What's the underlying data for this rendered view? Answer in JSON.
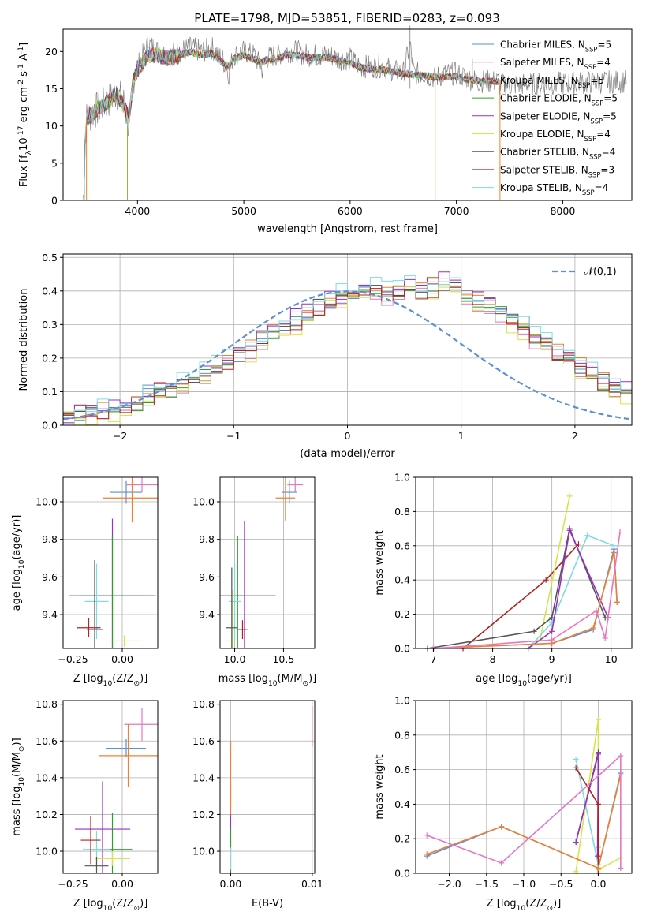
{
  "chart_data": [
    {
      "id": "spectrum",
      "type": "line",
      "title": "PLATE=1798, MJD=53851, FIBERID=0283, z=0.093",
      "xlabel": "wavelength [Angstrom, rest frame]",
      "ylabel": "Flux [f$_\\lambda$10$^{-17}$ erg cm$^{-2}$ s$^{-1}$ A$^{-1}$]",
      "xlim": [
        3300,
        8650
      ],
      "ylim": [
        0,
        23
      ],
      "xticks": [
        4000,
        5000,
        6000,
        7000,
        8000
      ],
      "yticks": [
        0,
        5,
        10,
        15,
        20
      ],
      "legend_position": "upper right",
      "data_x": [
        3480,
        3520,
        3600,
        3700,
        3800,
        3880,
        3920,
        3960,
        4000,
        4100,
        4200,
        4300,
        4400,
        4500,
        4600,
        4700,
        4800,
        4860,
        4900,
        5000,
        5100,
        5175,
        5200,
        5300,
        5400,
        5500,
        5600,
        5700,
        5800,
        5900,
        6000,
        6100,
        6200,
        6300,
        6400,
        6500,
        6563,
        6600,
        6700,
        6800,
        6900,
        7000,
        7100,
        7200,
        7300,
        7400
      ],
      "data_y": [
        0,
        11,
        12,
        13,
        14.5,
        13,
        9,
        16.5,
        18,
        21,
        20,
        19.5,
        20,
        20.5,
        20,
        20.5,
        19,
        17,
        19.5,
        20,
        19.5,
        17.5,
        19,
        19.5,
        20,
        20,
        19.5,
        19.5,
        19.5,
        19,
        19,
        18,
        18,
        18,
        17.5,
        17,
        21,
        17,
        17,
        16.5,
        17,
        17,
        16.5,
        16,
        16,
        16
      ],
      "series": [
        {
          "name": "Chabrier MILES, N$_{SSP}$=5",
          "color": "#5b8fd6"
        },
        {
          "name": "Salpeter MILES, N$_{SSP}$=4",
          "color": "#e377c2"
        },
        {
          "name": "Kroupa MILES, N$_{SSP}$=5",
          "color": "#f08030"
        },
        {
          "name": "Chabrier ELODIE, N$_{SSP}$=5",
          "color": "#2ca02c"
        },
        {
          "name": "Salpeter ELODIE, N$_{SSP}$=5",
          "color": "#9b2fbf"
        },
        {
          "name": "Kroupa ELODIE, N$_{SSP}$=4",
          "color": "#d7e44a"
        },
        {
          "name": "Chabrier STELIB, N$_{SSP}$=4",
          "color": "#555555"
        },
        {
          "name": "Salpeter STELIB, N$_{SSP}$=3",
          "color": "#b22222"
        },
        {
          "name": "Kroupa STELIB, N$_{SSP}$=4",
          "color": "#7fdbe0"
        }
      ],
      "model_fit_values": [
        0,
        11,
        12,
        13,
        14.3,
        12.5,
        11,
        16,
        17.5,
        19.5,
        19.5,
        19,
        19.5,
        20,
        19.5,
        19.8,
        18.5,
        18,
        19,
        19.5,
        19,
        18.5,
        18.8,
        19,
        19.5,
        19.5,
        19.2,
        19.2,
        19.2,
        18.8,
        18.5,
        17.8,
        17.6,
        17.6,
        17.3,
        17,
        17,
        16.8,
        16.8,
        16.5,
        16.6,
        16.6,
        16.3,
        16,
        16,
        16
      ]
    },
    {
      "id": "residuals",
      "type": "line",
      "xlabel": "(data-model)/error",
      "ylabel": "Normed distribution",
      "xlim": [
        -2.5,
        2.5
      ],
      "ylim": [
        0,
        0.51
      ],
      "xticks": [
        -2,
        -1,
        0,
        1,
        2
      ],
      "yticks": [
        0.0,
        0.1,
        0.2,
        0.3,
        0.4,
        0.5
      ],
      "grid": true,
      "legend_position": "upper right",
      "reference": {
        "name": "$\\mathcal{N}(0,1)$",
        "color": "#5b8fd6"
      },
      "bin_width": 0.1,
      "bin_start": -2.5,
      "base_histogram": [
        0.02,
        0.03,
        0.035,
        0.045,
        0.05,
        0.06,
        0.07,
        0.09,
        0.1,
        0.11,
        0.12,
        0.14,
        0.15,
        0.17,
        0.19,
        0.21,
        0.23,
        0.25,
        0.28,
        0.3,
        0.31,
        0.33,
        0.35,
        0.37,
        0.38,
        0.39,
        0.39,
        0.4,
        0.39,
        0.4,
        0.41,
        0.4,
        0.41,
        0.42,
        0.4,
        0.38,
        0.37,
        0.36,
        0.34,
        0.31,
        0.29,
        0.26,
        0.24,
        0.21,
        0.19,
        0.17,
        0.15,
        0.13,
        0.11,
        0.1
      ],
      "series_colors": [
        "#5b8fd6",
        "#e377c2",
        "#f08030",
        "#2ca02c",
        "#9b2fbf",
        "#d7e44a",
        "#555555",
        "#b22222",
        "#7fdbe0"
      ],
      "series_offsets": [
        0.0,
        -0.012,
        0.01,
        -0.005,
        0.015,
        -0.02,
        0.006,
        -0.008,
        0.02
      ]
    },
    {
      "id": "age_vs_Z",
      "type": "scatter",
      "xlabel": "Z [log$_{10}$($Z/Z_\\odot$)]",
      "ylabel": "age  [log$_{10}$($age/yr$)]",
      "xlim": [
        -0.3,
        0.18
      ],
      "ylim": [
        9.22,
        10.13
      ],
      "xticks": [
        -0.25,
        0.0
      ],
      "xticklabels": [
        "−0.25",
        "0.00"
      ],
      "yticks": [
        9.4,
        9.6,
        9.8,
        10.0
      ],
      "grid": true,
      "points": [
        {
          "x": -0.05,
          "y": 9.5,
          "xerr": 0.22,
          "yerr": 0.41,
          "color": "#9b2fbf"
        },
        {
          "x": -0.05,
          "y": 9.5,
          "xerr": 0.17,
          "yerr": 0.32,
          "color": "#2ca02c"
        },
        {
          "x": 0.01,
          "y": 9.26,
          "xerr": 0.08,
          "yerr": 0.03,
          "color": "#d7e44a"
        },
        {
          "x": -0.13,
          "y": 9.47,
          "xerr": 0.06,
          "yerr": 0.2,
          "color": "#7fdbe0"
        },
        {
          "x": -0.14,
          "y": 9.32,
          "xerr": 0.04,
          "yerr": 0.37,
          "color": "#555555"
        },
        {
          "x": -0.17,
          "y": 9.33,
          "xerr": 0.06,
          "yerr": 0.05,
          "color": "#b22222"
        },
        {
          "x": 0.02,
          "y": 10.05,
          "xerr": 0.08,
          "yerr": 0.06,
          "color": "#5b8fd6"
        },
        {
          "x": 0.1,
          "y": 10.09,
          "xerr": 0.08,
          "yerr": 0.04,
          "color": "#e377c2"
        },
        {
          "x": 0.05,
          "y": 10.02,
          "xerr": 0.15,
          "yerr": 0.13,
          "color": "#f08030"
        }
      ]
    },
    {
      "id": "age_vs_mass",
      "type": "scatter",
      "xlabel": "mass [log$_{10}$($M/M_\\odot$)]",
      "ylabel": "",
      "xlim": [
        9.85,
        10.82
      ],
      "ylim": [
        9.22,
        10.13
      ],
      "xticks": [
        10.0,
        10.5
      ],
      "xticklabels": [
        "10.0",
        "10.5"
      ],
      "yticks": [
        9.4,
        9.6,
        9.8,
        10.0
      ],
      "grid": true,
      "points": [
        {
          "x": 10.1,
          "y": 9.5,
          "xerr": 0.32,
          "yerr": 0.4,
          "color": "#9b2fbf"
        },
        {
          "x": 10.03,
          "y": 9.5,
          "xerr": 0.08,
          "yerr": 0.32,
          "color": "#2ca02c"
        },
        {
          "x": 9.98,
          "y": 9.26,
          "xerr": 0.06,
          "yerr": 0.27,
          "color": "#d7e44a"
        },
        {
          "x": 10.0,
          "y": 9.47,
          "xerr": 0.06,
          "yerr": 0.2,
          "color": "#7fdbe0"
        },
        {
          "x": 9.97,
          "y": 9.33,
          "xerr": 0.06,
          "yerr": 0.32,
          "color": "#555555"
        },
        {
          "x": 10.08,
          "y": 9.32,
          "xerr": 0.05,
          "yerr": 0.05,
          "color": "#b22222"
        },
        {
          "x": 10.56,
          "y": 10.05,
          "xerr": 0.08,
          "yerr": 0.06,
          "color": "#5b8fd6"
        },
        {
          "x": 10.62,
          "y": 10.09,
          "xerr": 0.08,
          "yerr": 0.04,
          "color": "#e377c2"
        },
        {
          "x": 10.52,
          "y": 10.02,
          "xerr": 0.1,
          "yerr": 0.12,
          "color": "#f08030"
        }
      ]
    },
    {
      "id": "weight_vs_age",
      "type": "line",
      "xlabel": "age  [log$_{10}$($age/yr$)]",
      "ylabel": "mass weight",
      "xlim": [
        6.7,
        10.35
      ],
      "ylim": [
        0,
        1
      ],
      "xticks": [
        7,
        8,
        9,
        10
      ],
      "yticks": [
        0.0,
        0.2,
        0.4,
        0.6,
        0.8,
        1.0
      ],
      "grid": true,
      "series": [
        {
          "color": "#b22222",
          "x": [
            7.5,
            8.9,
            9.45
          ],
          "y": [
            0.0,
            0.4,
            0.61
          ]
        },
        {
          "color": "#d7e44a",
          "x": [
            8.8,
            9.3
          ],
          "y": [
            0.05,
            0.89
          ]
        },
        {
          "color": "#555555",
          "x": [
            6.9,
            8.7,
            9.0,
            9.3,
            9.9
          ],
          "y": [
            0.0,
            0.1,
            0.18,
            0.7,
            0.18
          ]
        },
        {
          "color": "#7fdbe0",
          "x": [
            8.6,
            9.0,
            9.6,
            10.05
          ],
          "y": [
            0.0,
            0.15,
            0.66,
            0.6
          ]
        },
        {
          "color": "#9b2fbf",
          "x": [
            8.6,
            9.0,
            9.3,
            9.95
          ],
          "y": [
            0.0,
            0.1,
            0.69,
            0.18
          ]
        },
        {
          "color": "#5b8fd6",
          "x": [
            7.0,
            9.0,
            9.7,
            10.05,
            10.1
          ],
          "y": [
            0.0,
            0.03,
            0.11,
            0.58,
            0.27
          ]
        },
        {
          "color": "#f08030",
          "x": [
            7.0,
            9.0,
            9.7,
            10.05,
            10.1
          ],
          "y": [
            0.0,
            0.03,
            0.12,
            0.56,
            0.27
          ]
        },
        {
          "color": "#e377c2",
          "x": [
            7.0,
            9.0,
            9.75,
            9.9,
            10.15
          ],
          "y": [
            0.0,
            0.05,
            0.22,
            0.06,
            0.68
          ]
        }
      ]
    },
    {
      "id": "mass_vs_Z",
      "type": "scatter",
      "xlabel": "Z [log$_{10}$($Z/Z_\\odot$)]",
      "ylabel": "mass [log$_{10}$($M/M_\\odot$)]",
      "xlim": [
        -0.3,
        0.18
      ],
      "ylim": [
        9.88,
        10.82
      ],
      "xticks": [
        -0.25,
        0.0
      ],
      "xticklabels": [
        "−0.25",
        "0.00"
      ],
      "yticks": [
        10.0,
        10.2,
        10.4,
        10.6,
        10.8
      ],
      "grid": true,
      "points": [
        {
          "x": -0.1,
          "y": 10.12,
          "xerr": 0.14,
          "yerr": 0.26,
          "color": "#9b2fbf"
        },
        {
          "x": -0.05,
          "y": 10.01,
          "xerr": 0.1,
          "yerr": 0.2,
          "color": "#2ca02c"
        },
        {
          "x": -0.05,
          "y": 9.96,
          "xerr": 0.09,
          "yerr": 0.04,
          "color": "#d7e44a"
        },
        {
          "x": -0.13,
          "y": 10.01,
          "xerr": 0.07,
          "yerr": 0.1,
          "color": "#7fdbe0"
        },
        {
          "x": -0.13,
          "y": 9.92,
          "xerr": 0.06,
          "yerr": 0.05,
          "color": "#555555"
        },
        {
          "x": -0.16,
          "y": 10.06,
          "xerr": 0.05,
          "yerr": 0.13,
          "color": "#b22222"
        },
        {
          "x": 0.02,
          "y": 10.56,
          "xerr": 0.1,
          "yerr": 0.05,
          "color": "#5b8fd6"
        },
        {
          "x": 0.1,
          "y": 10.69,
          "xerr": 0.09,
          "yerr": 0.09,
          "color": "#e377c2"
        },
        {
          "x": 0.03,
          "y": 10.52,
          "xerr": 0.15,
          "yerr": 0.17,
          "color": "#f08030"
        }
      ]
    },
    {
      "id": "mass_vs_EBV",
      "type": "scatter",
      "xlabel": "E(B-V)",
      "ylabel": "",
      "xlim": [
        -0.0013,
        0.0103
      ],
      "ylim": [
        9.88,
        10.82
      ],
      "xticks": [
        0.0,
        0.01
      ],
      "xticklabels": [
        "0.00",
        "0.01"
      ],
      "yticks": [
        10.0,
        10.2,
        10.4,
        10.6,
        10.8
      ],
      "grid": true,
      "points": [
        {
          "x": 0.0,
          "y": 10.12,
          "yerr": 0.26,
          "color": "#9b2fbf"
        },
        {
          "x": 0.0,
          "y": 10.01,
          "yerr": 0.12,
          "color": "#2ca02c"
        },
        {
          "x": 0.0,
          "y": 9.96,
          "yerr": 0.06,
          "color": "#7fdbe0"
        },
        {
          "x": 0.0,
          "y": 10.5,
          "yerr": 0.1,
          "color": "#5b8fd6"
        },
        {
          "x": 0.0,
          "y": 10.4,
          "yerr": 0.2,
          "color": "#f08030"
        },
        {
          "x": 0.01,
          "y": 10.68,
          "yerr": 0.11,
          "color": "#e377c2"
        }
      ]
    },
    {
      "id": "weight_vs_Z",
      "type": "line",
      "xlabel": "Z [log$_{10}$($Z/Z_\\odot$)]",
      "ylabel": "mass weight",
      "xlim": [
        -2.45,
        0.45
      ],
      "ylim": [
        0,
        1
      ],
      "xticks": [
        -2.0,
        -1.5,
        -1.0,
        -0.5,
        0.0
      ],
      "xticklabels": [
        "−2.0",
        "−1.5",
        "−1.0",
        "−0.5",
        "0.0"
      ],
      "yticks": [
        0.0,
        0.2,
        0.4,
        0.6,
        0.8,
        1.0
      ],
      "grid": true,
      "series": [
        {
          "color": "#d7e44a",
          "x": [
            -0.3,
            0.0,
            0.0,
            0.3
          ],
          "y": [
            0.01,
            0.89,
            0.02,
            0.09
          ]
        },
        {
          "color": "#7fdbe0",
          "x": [
            -0.3,
            0.0,
            0.0
          ],
          "y": [
            0.66,
            0.05,
            0.15
          ]
        },
        {
          "color": "#555555",
          "x": [
            -0.3,
            0.0,
            0.0
          ],
          "y": [
            0.18,
            0.7,
            0.1
          ]
        },
        {
          "color": "#9b2fbf",
          "x": [
            -0.3,
            0.0,
            -0.01
          ],
          "y": [
            0.18,
            0.69,
            0.1
          ]
        },
        {
          "color": "#b22222",
          "x": [
            -0.3,
            0.0,
            0.0
          ],
          "y": [
            0.61,
            0.4,
            0.0
          ]
        },
        {
          "color": "#5b8fd6",
          "x": [
            -2.3,
            -1.3,
            0.0,
            0.3
          ],
          "y": [
            0.1,
            0.27,
            0.03,
            0.58
          ]
        },
        {
          "color": "#f08030",
          "x": [
            -2.3,
            -1.3,
            0.0,
            0.3
          ],
          "y": [
            0.11,
            0.27,
            0.03,
            0.57
          ]
        },
        {
          "color": "#e377c2",
          "x": [
            -2.3,
            -1.3,
            0.3,
            0.3
          ],
          "y": [
            0.22,
            0.06,
            0.68,
            0.03
          ]
        }
      ]
    }
  ]
}
